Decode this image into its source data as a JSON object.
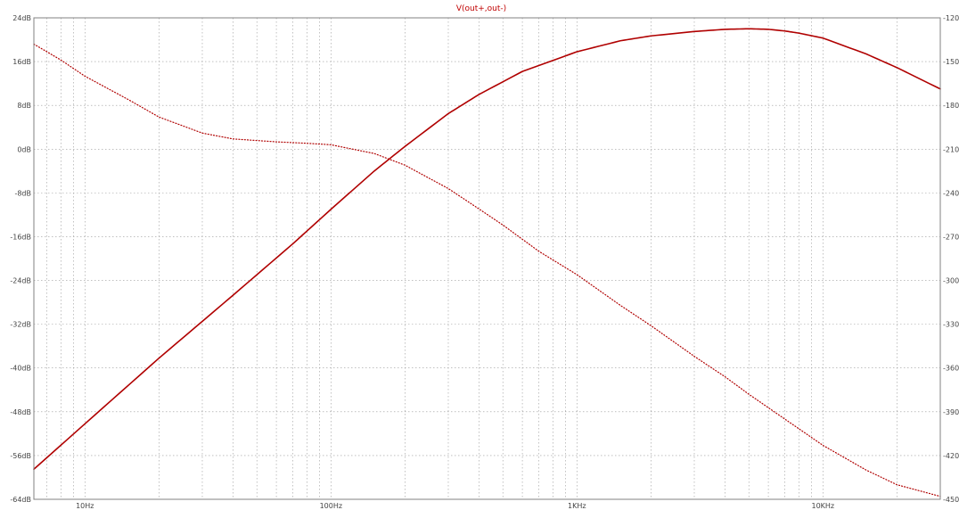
{
  "colors": {
    "background": "#ffffff",
    "grid": "#9a9a9a",
    "frame": "#808080",
    "trace": "#b00000",
    "tick_text": "#444444"
  },
  "chart_data": {
    "type": "line",
    "title": "V(out+,out-)",
    "xlabel": "",
    "ylabel": "",
    "x_scale": "log",
    "xlim": [
      6.2,
      30000
    ],
    "x_ticks": [
      10,
      100,
      1000,
      10000
    ],
    "x_tick_labels": [
      "10Hz",
      "100Hz",
      "1KHz",
      "10KHz"
    ],
    "ylim": [
      -64,
      24
    ],
    "y_ticks": [
      24,
      16,
      8,
      0,
      -8,
      -16,
      -24,
      -32,
      -40,
      -48,
      -56,
      -64
    ],
    "y_tick_labels": [
      "24dB",
      "16dB",
      "8dB",
      "0dB",
      "-8dB",
      "-16dB",
      "-24dB",
      "-32dB",
      "-40dB",
      "-48dB",
      "-56dB",
      "-64dB"
    ],
    "y2lim": [
      120,
      450
    ],
    "y2_ticks": [
      120,
      150,
      180,
      210,
      240,
      270,
      300,
      330,
      360,
      390,
      420,
      450
    ],
    "y2_tick_labels": [
      "-120",
      "-150",
      "-180",
      "-210",
      "-240",
      "-270",
      "-300",
      "-330",
      "-360",
      "-390",
      "-420",
      "-450"
    ],
    "grid": true,
    "legend": "none",
    "series": [
      {
        "axis": "left",
        "style": "solid",
        "x": [
          6.2,
          10,
          20,
          40,
          70,
          100,
          150,
          200,
          300,
          400,
          600,
          1000,
          1500,
          2000,
          3000,
          4000,
          5000,
          6000,
          7000,
          8000,
          10000,
          15000,
          20000,
          30000
        ],
        "y": [
          -58.5,
          -50.2,
          -38.2,
          -26.7,
          -17.3,
          -11,
          -4,
          0.5,
          6.5,
          10,
          14.2,
          17.8,
          19.8,
          20.7,
          21.5,
          21.9,
          22,
          21.9,
          21.6,
          21.2,
          20.3,
          17.4,
          14.9,
          11
        ]
      },
      {
        "axis": "right",
        "style": "dotted",
        "x": [
          6.2,
          8,
          10,
          15,
          20,
          30,
          40,
          60,
          80,
          100,
          150,
          200,
          300,
          400,
          500,
          700,
          1000,
          1500,
          2000,
          3000,
          4000,
          5000,
          7000,
          10000,
          15000,
          20000,
          30000
        ],
        "y": [
          138,
          149,
          160,
          176,
          188,
          199,
          203,
          205,
          206,
          207,
          213,
          221,
          237,
          251,
          262,
          280,
          296,
          317,
          331,
          352,
          366,
          378,
          395,
          413,
          430,
          440,
          448
        ]
      }
    ]
  }
}
